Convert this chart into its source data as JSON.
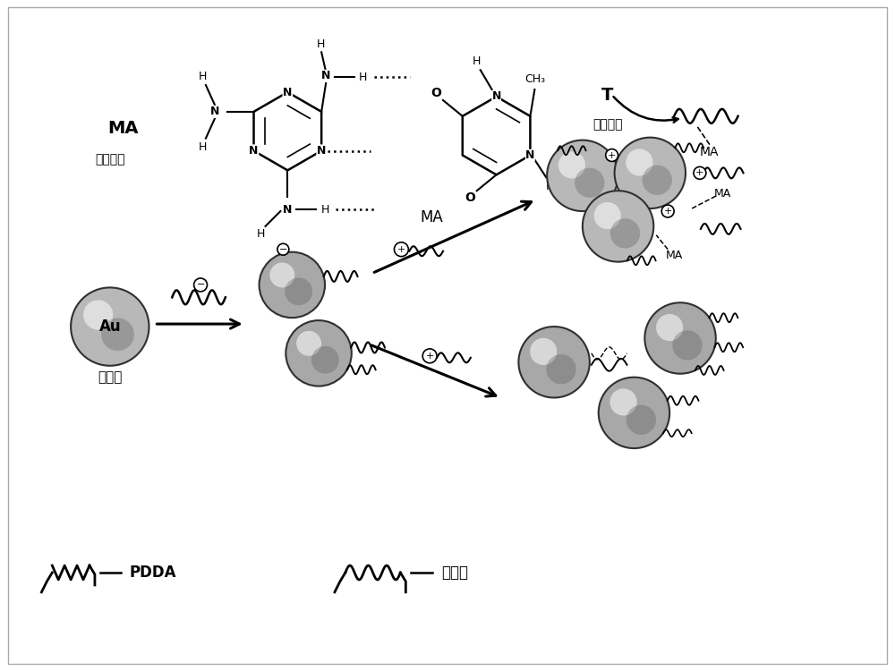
{
  "bg_color": "#ffffff",
  "ma_label": "MA",
  "ma_sublabel": "三聚氰胺",
  "t_label": "T",
  "t_sublabel": "胸腺嘘啖",
  "au_label": "Au",
  "au_sublabel": "纳米金",
  "pdda_label": "PDDA",
  "aptamer_label": "适配体",
  "ma_text": "MA",
  "border_color": "#cccccc"
}
